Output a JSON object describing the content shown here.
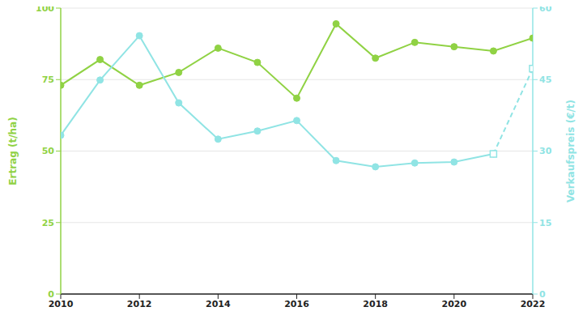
{
  "chart_data": {
    "type": "line",
    "x": [
      2010,
      2011,
      2012,
      2013,
      2014,
      2015,
      2016,
      2017,
      2018,
      2019,
      2020,
      2021,
      2022
    ],
    "xlim": [
      2010,
      2022
    ],
    "xticks": [
      2010,
      2012,
      2014,
      2016,
      2018,
      2020,
      2022
    ],
    "ylabel": "Ertrag (t/ha)",
    "ylim": [
      0,
      100
    ],
    "yticks": [
      0,
      25,
      50,
      75,
      100
    ],
    "y2label": "Verkaufspreis (€/t)",
    "y2lim": [
      0,
      60
    ],
    "y2ticks": [
      0,
      15,
      30,
      45,
      60
    ],
    "grid": true,
    "series": [
      {
        "color": "#90d244",
        "values": [
          73,
          82,
          73,
          77.5,
          86,
          81,
          68.5,
          94.5,
          82.5,
          88,
          86.5,
          85,
          89.5
        ],
        "marker": "circle",
        "line_style": "solid"
      },
      {
        "color": "#90e4e4",
        "axis": "y2",
        "values": [
          33.3,
          44.9,
          54.2,
          40.1,
          32.5,
          34.2,
          36.4,
          28.0,
          26.7,
          27.5,
          27.7,
          29.4,
          null
        ],
        "marker": "circle",
        "line_style": "solid"
      },
      {
        "color": "#90e4e4",
        "axis": "y2",
        "values": [
          null,
          null,
          null,
          null,
          null,
          null,
          null,
          null,
          null,
          null,
          null,
          29.4,
          47.3
        ],
        "marker": "square",
        "line_style": "dashed"
      }
    ]
  }
}
